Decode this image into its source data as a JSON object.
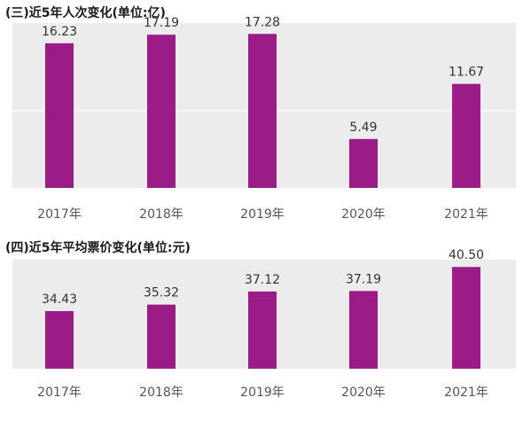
{
  "chart_data": [
    {
      "type": "bar",
      "title": "(三)近5年人次变化(单位:亿)",
      "categories": [
        "2017年",
        "2018年",
        "2019年",
        "2020年",
        "2021年"
      ],
      "values": [
        16.23,
        17.19,
        17.28,
        5.49,
        11.67
      ],
      "value_labels": [
        "16.23",
        "17.19",
        "17.28",
        "5.49",
        "11.67"
      ],
      "ylim": [
        0,
        18.5
      ],
      "grid": false,
      "colors": {
        "bar": "#9b1c86",
        "plot_bg": "#ececec"
      }
    },
    {
      "type": "bar",
      "title": "(四)近5年平均票价变化(单位:元)",
      "categories": [
        "2017年",
        "2018年",
        "2019年",
        "2020年",
        "2021年"
      ],
      "values": [
        34.43,
        35.32,
        37.12,
        37.19,
        40.5
      ],
      "value_labels": [
        "34.43",
        "35.32",
        "37.12",
        "37.19",
        "40.50"
      ],
      "ylim": [
        26.5,
        41.5
      ],
      "grid": false,
      "colors": {
        "bar": "#9b1c86",
        "plot_bg": "#ececec"
      }
    }
  ]
}
